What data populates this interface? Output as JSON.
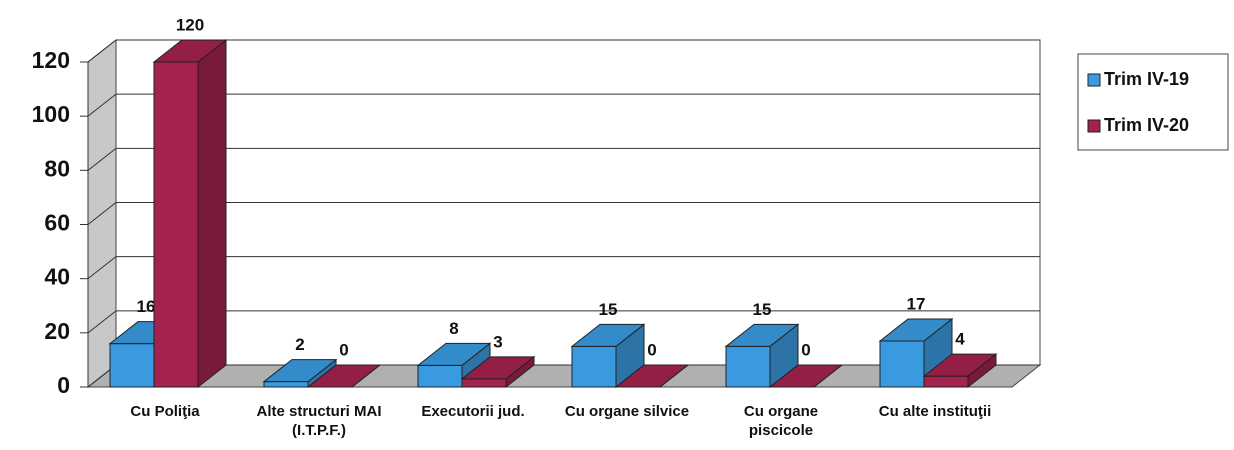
{
  "chart_data": {
    "type": "bar",
    "categories": [
      "Cu Poliţia",
      "Alte structuri MAI (I.T.P.F.)",
      "Executorii jud.",
      "Cu organe silvice",
      "Cu organe piscicole",
      "Cu alte instituţii"
    ],
    "series": [
      {
        "name": "Trim IV-19",
        "color": "#3a9ae0",
        "values": [
          16,
          2,
          8,
          15,
          15,
          17
        ]
      },
      {
        "name": "Trim IV-20",
        "color": "#a3224f",
        "values": [
          120,
          0,
          3,
          0,
          0,
          4
        ]
      }
    ],
    "ylim": [
      0,
      120
    ],
    "yticks": [
      0,
      20,
      40,
      60,
      80,
      100,
      120
    ],
    "grid": true,
    "legend": "right"
  }
}
